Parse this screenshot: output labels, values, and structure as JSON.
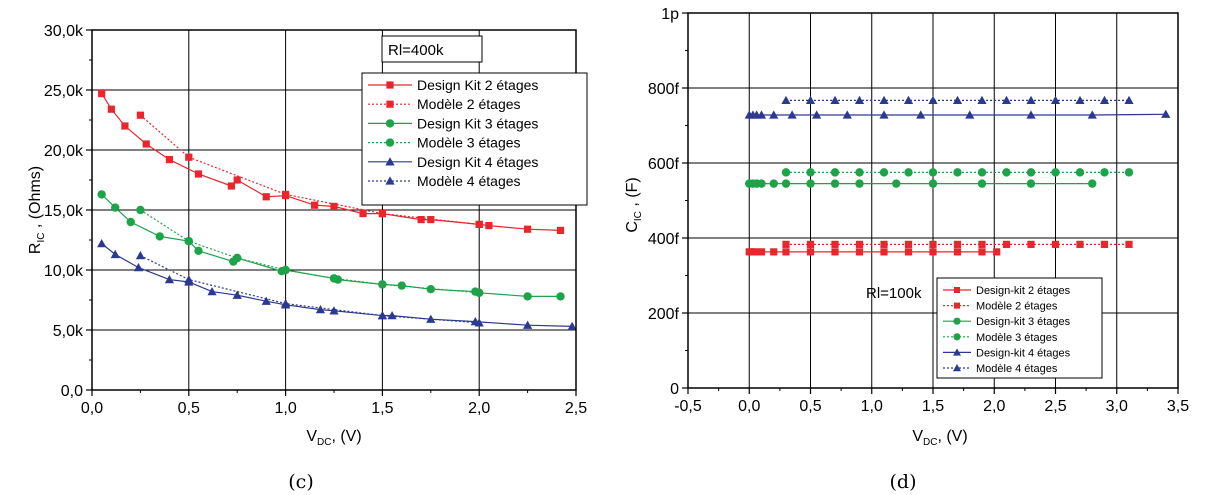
{
  "chart_data": [
    {
      "type": "line",
      "caption": "(c)",
      "ylabel": "R",
      "ylabel_sub": "IC",
      "ylabel_unit": " , (Ohms)",
      "xlabel": "V",
      "xlabel_sub": "DC",
      "xlabel_unit": ", (V)",
      "xlim": [
        0,
        2.5
      ],
      "ylim": [
        0,
        30000
      ],
      "x_ticks": [
        "0,0",
        "0,5",
        "1,0",
        "1,5",
        "2,0",
        "2,5"
      ],
      "y_ticks": [
        "0,0",
        "5,0k",
        "10,0k",
        "15,0k",
        "20,0k",
        "25,0k",
        "30,0k"
      ],
      "annotation": "Rl=400k",
      "grid": true,
      "legend_position": "top-right",
      "colors": {
        "red": "#e8262b",
        "green": "#1ea34a",
        "blue": "#2b3990"
      },
      "series": [
        {
          "name": "Design Kit 2 étages",
          "color": "#e8262b",
          "marker": "square",
          "dash": false,
          "x": [
            0.05,
            0.1,
            0.17,
            0.28,
            0.4,
            0.55,
            0.72,
            0.75,
            0.9,
            1.0,
            1.15,
            1.25,
            1.4,
            1.5,
            1.7,
            1.75,
            2.0,
            2.05,
            2.25,
            2.42
          ],
          "y": [
            24700,
            23400,
            22000,
            20500,
            19200,
            18000,
            17000,
            17500,
            16100,
            16200,
            15400,
            15300,
            14700,
            14700,
            14200,
            14200,
            13800,
            13700,
            13400,
            13300
          ]
        },
        {
          "name": "Modèle 2 étages",
          "color": "#e8262b",
          "marker": "square",
          "dash": true,
          "x": [
            0.25,
            0.5,
            1.0,
            1.5,
            2.0
          ],
          "y": [
            22900,
            19400,
            16300,
            14700,
            13800
          ]
        },
        {
          "name": "Design Kit 3 étages",
          "color": "#1ea34a",
          "marker": "circle",
          "dash": false,
          "x": [
            0.05,
            0.12,
            0.2,
            0.35,
            0.5,
            0.55,
            0.73,
            0.75,
            0.98,
            1.0,
            1.25,
            1.27,
            1.5,
            1.6,
            1.75,
            1.98,
            2.0,
            2.25,
            2.42
          ],
          "y": [
            16300,
            15200,
            14000,
            12800,
            12400,
            11600,
            10700,
            11000,
            9900,
            10000,
            9300,
            9200,
            8800,
            8700,
            8400,
            8200,
            8100,
            7800,
            7800
          ]
        },
        {
          "name": "Modèle 3 étages",
          "color": "#1ea34a",
          "marker": "circle",
          "dash": true,
          "x": [
            0.25,
            0.5,
            0.75,
            1.0,
            1.25,
            1.5,
            2.0
          ],
          "y": [
            15000,
            12400,
            11000,
            10000,
            9300,
            8800,
            8100
          ]
        },
        {
          "name": "Design Kit 4 étages",
          "color": "#2b3990",
          "marker": "triangle",
          "dash": false,
          "x": [
            0.05,
            0.12,
            0.24,
            0.4,
            0.5,
            0.62,
            0.75,
            0.9,
            1.0,
            1.18,
            1.25,
            1.5,
            1.55,
            1.75,
            1.98,
            2.25,
            2.48
          ],
          "y": [
            12200,
            11300,
            10200,
            9200,
            9000,
            8200,
            7900,
            7400,
            7100,
            6700,
            6600,
            6200,
            6200,
            5900,
            5700,
            5400,
            5300
          ]
        },
        {
          "name": "Modèle 4 étages",
          "color": "#2b3990",
          "marker": "triangle",
          "dash": true,
          "x": [
            0.25,
            0.5,
            1.0,
            1.5,
            2.0
          ],
          "y": [
            11200,
            9200,
            7200,
            6200,
            5600
          ]
        }
      ]
    },
    {
      "type": "line",
      "caption": "(d)",
      "ylabel": "C",
      "ylabel_sub": "IC",
      "ylabel_unit": " , (F)",
      "xlabel": "V",
      "xlabel_sub": "DC",
      "xlabel_unit": ", (V)",
      "xlim": [
        -0.5,
        3.5
      ],
      "ylim": [
        0,
        1000
      ],
      "x_ticks": [
        "-0,5",
        "0,0",
        "0,5",
        "1,0",
        "1,5",
        "2,0",
        "2,5",
        "3,0",
        "3,5"
      ],
      "y_ticks": [
        "0",
        "200f",
        "400f",
        "600f",
        "800f",
        "1p"
      ],
      "annotation": "Rl=100k",
      "grid": true,
      "legend_position": "bottom-right",
      "series": [
        {
          "name": "Design-kit 2 étages",
          "color": "#e8262b",
          "marker": "square",
          "dash": false,
          "x": [
            0.0,
            0.02,
            0.05,
            0.1,
            0.2,
            0.3,
            0.5,
            0.7,
            0.9,
            1.1,
            1.3,
            1.5,
            1.7,
            1.9,
            2.02
          ],
          "y": [
            363,
            363,
            363,
            363,
            363,
            363,
            363,
            363,
            363,
            363,
            363,
            363,
            363,
            363,
            363
          ]
        },
        {
          "name": "Modèle 2 étages",
          "color": "#e8262b",
          "marker": "square",
          "dash": true,
          "x": [
            0.3,
            0.5,
            0.7,
            0.9,
            1.1,
            1.3,
            1.5,
            1.7,
            1.9,
            2.1,
            2.3,
            2.5,
            2.7,
            2.9,
            3.1
          ],
          "y": [
            383,
            383,
            383,
            383,
            383,
            383,
            383,
            383,
            383,
            383,
            383,
            383,
            383,
            383,
            383
          ]
        },
        {
          "name": "Design-kit 3 étages",
          "color": "#1ea34a",
          "marker": "circle",
          "dash": false,
          "x": [
            0.0,
            0.03,
            0.06,
            0.1,
            0.2,
            0.3,
            0.5,
            0.7,
            0.9,
            1.2,
            1.5,
            1.9,
            2.3,
            2.8
          ],
          "y": [
            545,
            545,
            545,
            545,
            545,
            545,
            545,
            545,
            545,
            545,
            545,
            545,
            545,
            545
          ]
        },
        {
          "name": "Modèle 3 étages",
          "color": "#1ea34a",
          "marker": "circle",
          "dash": true,
          "x": [
            0.3,
            0.5,
            0.7,
            0.9,
            1.1,
            1.3,
            1.5,
            1.7,
            1.9,
            2.1,
            2.3,
            2.5,
            2.7,
            2.9,
            3.1
          ],
          "y": [
            575,
            575,
            575,
            575,
            575,
            575,
            575,
            575,
            575,
            575,
            575,
            575,
            575,
            575,
            575
          ]
        },
        {
          "name": "Design-kit 4 étages",
          "color": "#2b3990",
          "marker": "triangle",
          "dash": false,
          "x": [
            0.0,
            0.03,
            0.06,
            0.1,
            0.2,
            0.35,
            0.55,
            0.8,
            1.1,
            1.4,
            1.8,
            2.3,
            2.8,
            3.4
          ],
          "y": [
            728,
            728,
            728,
            728,
            728,
            728,
            728,
            728,
            728,
            728,
            728,
            728,
            728,
            730
          ]
        },
        {
          "name": "Modèle 4 étages",
          "color": "#2b3990",
          "marker": "triangle",
          "dash": true,
          "x": [
            0.3,
            0.5,
            0.7,
            0.9,
            1.1,
            1.3,
            1.5,
            1.7,
            1.9,
            2.1,
            2.3,
            2.5,
            2.7,
            2.9,
            3.1
          ],
          "y": [
            767,
            767,
            767,
            767,
            767,
            767,
            767,
            767,
            767,
            767,
            767,
            767,
            767,
            767,
            767
          ]
        }
      ]
    }
  ]
}
